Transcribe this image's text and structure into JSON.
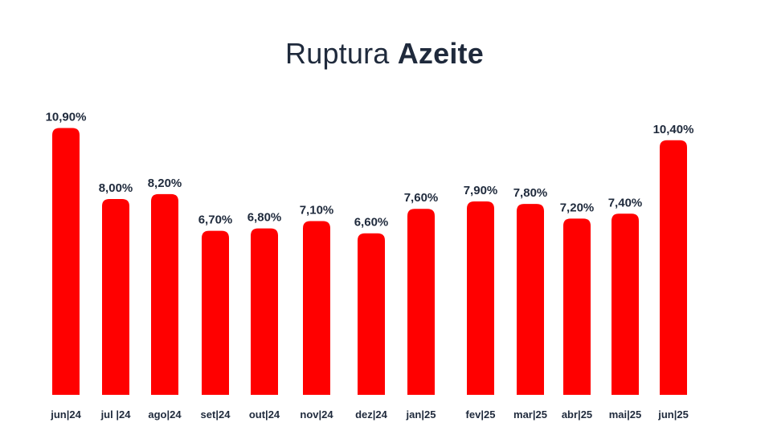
{
  "title": {
    "light": "Ruptura ",
    "bold": "Azeite"
  },
  "colors": {
    "bar": "#ff0000",
    "text": "#1f2a3c"
  },
  "chart_data": {
    "type": "bar",
    "title": "Ruptura Azeite",
    "categories": [
      "jun|24",
      "jul |24",
      "ago|24",
      "set|24",
      "out|24",
      "nov|24",
      "dez|24",
      "jan|25",
      "fev|25",
      "mar|25",
      "abr|25",
      "mai|25",
      "jun|25"
    ],
    "values": [
      10.9,
      8.0,
      8.2,
      6.7,
      6.8,
      7.1,
      6.6,
      7.6,
      7.9,
      7.8,
      7.2,
      7.4,
      10.4
    ],
    "value_labels": [
      "10,90%",
      "8,00%",
      "8,20%",
      "6,70%",
      "6,80%",
      "7,10%",
      "6,60%",
      "7,60%",
      "7,90%",
      "7,80%",
      "7,20%",
      "7,40%",
      "10,40%"
    ],
    "xlabel": "",
    "ylabel": "",
    "grid": false,
    "legend": "none"
  }
}
